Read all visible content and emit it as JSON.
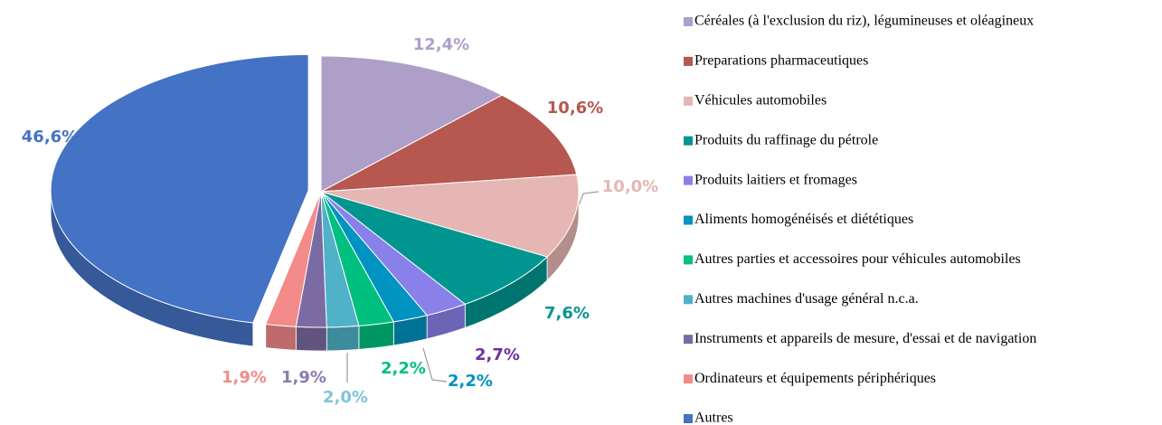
{
  "chart_data": {
    "type": "pie",
    "categories": [
      "Céréales (à l'exclusion du riz), légumineuses et oléagineux",
      "Preparations pharmaceutiques",
      "Véhicules automobiles",
      "Produits du raffinage du pétrole",
      "Produits laitiers et fromages",
      "Aliments homogénéisés et diététiques",
      "Autres parties et accessoires pour véhicules automobiles",
      "Autres machines d'usage général n.c.a.",
      "Instruments et appareils de mesure, d'essai et de navigation",
      "Ordinateurs et équipements périphériques",
      "Autres"
    ],
    "values": [
      12.4,
      10.6,
      10.0,
      7.6,
      2.7,
      2.2,
      2.2,
      2.0,
      1.9,
      1.9,
      46.6
    ],
    "value_labels": [
      "12,4%",
      "10,6%",
      "10,0%",
      "7,6%",
      "2,7%",
      "2,2%",
      "2,2%",
      "2,0%",
      "1,9%",
      "1,9%",
      "46,6%"
    ],
    "colors": [
      "#ae9fc9",
      "#b65750",
      "#e5b6b4",
      "#00968f",
      "#8a80ea",
      "#0092c0",
      "#00c07f",
      "#4fb2c8",
      "#7b6ba3",
      "#f28b89",
      "#4472c4"
    ],
    "label_colors": [
      "#ae9fc9",
      "#b65750",
      "#e5b6b4",
      "#00968f",
      "#7030a0",
      "#0092c0",
      "#00c07f",
      "#7fc4d8",
      "#8a7bb0",
      "#f28b89",
      "#4472c4"
    ]
  }
}
